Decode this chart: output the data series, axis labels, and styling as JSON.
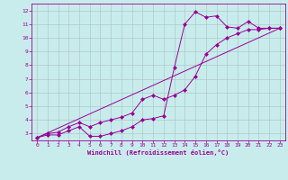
{
  "xlabel": "Windchill (Refroidissement éolien,°C)",
  "bg_color": "#c8ecec",
  "line_color": "#990099",
  "grid_color": "#b0c8c8",
  "xlim": [
    -0.5,
    23.5
  ],
  "ylim": [
    2.5,
    12.5
  ],
  "xticks": [
    0,
    1,
    2,
    3,
    4,
    5,
    6,
    7,
    8,
    9,
    10,
    11,
    12,
    13,
    14,
    15,
    16,
    17,
    18,
    19,
    20,
    21,
    22,
    23
  ],
  "yticks": [
    3,
    4,
    5,
    6,
    7,
    8,
    9,
    10,
    11,
    12
  ],
  "line1_x": [
    0,
    1,
    2,
    3,
    4,
    5,
    6,
    7,
    8,
    9,
    10,
    11,
    12,
    13,
    14,
    15,
    16,
    17,
    18,
    19,
    20,
    21,
    22,
    23
  ],
  "line1_y": [
    2.7,
    2.9,
    2.9,
    3.2,
    3.5,
    2.8,
    2.8,
    3.0,
    3.2,
    3.5,
    4.0,
    4.1,
    4.3,
    7.8,
    11.0,
    11.9,
    11.5,
    11.6,
    10.8,
    10.7,
    11.2,
    10.7,
    10.7,
    10.7
  ],
  "line2_x": [
    0,
    1,
    2,
    3,
    4,
    5,
    6,
    7,
    8,
    9,
    10,
    11,
    12,
    13,
    14,
    15,
    16,
    17,
    18,
    19,
    20,
    21,
    22,
    23
  ],
  "line2_y": [
    2.7,
    3.0,
    3.1,
    3.5,
    3.8,
    3.5,
    3.8,
    4.0,
    4.2,
    4.5,
    5.5,
    5.8,
    5.5,
    5.8,
    6.2,
    7.2,
    8.8,
    9.5,
    10.0,
    10.3,
    10.6,
    10.6,
    10.7,
    10.7
  ],
  "line3_x": [
    0,
    23
  ],
  "line3_y": [
    2.7,
    10.7
  ]
}
